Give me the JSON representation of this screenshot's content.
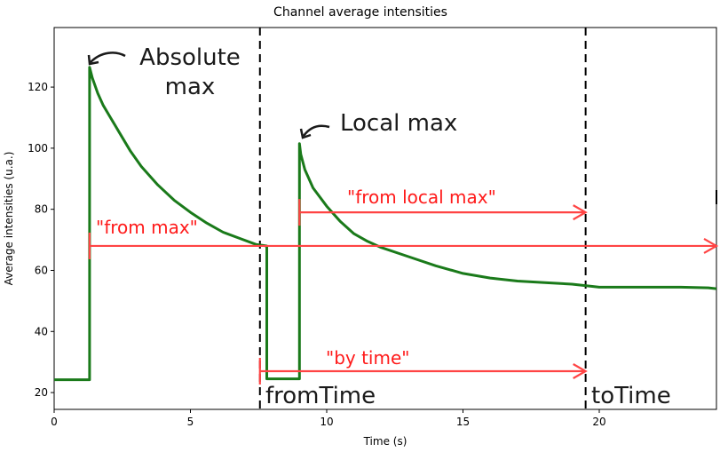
{
  "chart_data": {
    "type": "line",
    "title": "Channel average intensities",
    "xlabel": "Time (s)",
    "ylabel": "Average intensities (u.a.)",
    "xlim": [
      0,
      24.3
    ],
    "ylim": [
      14.5,
      139.5
    ],
    "xticks": [
      0,
      5,
      10,
      15,
      20
    ],
    "yticks": [
      20,
      40,
      60,
      80,
      100,
      120
    ],
    "grid": false,
    "series": [
      {
        "name": "",
        "color": "#1a7a1a",
        "x": [
          0,
          1.3,
          1.3,
          1.4,
          1.6,
          1.8,
          2.0,
          2.4,
          2.8,
          3.2,
          3.8,
          4.4,
          5.0,
          5.6,
          6.2,
          6.8,
          7.4,
          7.8,
          7.8,
          9.0,
          9.0,
          9.05,
          9.2,
          9.5,
          10.0,
          10.5,
          11.0,
          11.5,
          12.0,
          13.0,
          14.0,
          15.0,
          16.0,
          17.0,
          18.0,
          19.0,
          20.0,
          21.0,
          22.0,
          23.0,
          24.0,
          24.3
        ],
        "y": [
          24.2,
          24.2,
          126.5,
          123.0,
          118.0,
          114.0,
          111.0,
          105.0,
          99.0,
          94.0,
          88.0,
          83.0,
          79.0,
          75.5,
          72.5,
          70.5,
          68.5,
          68.0,
          24.5,
          24.5,
          101.5,
          98.0,
          93.0,
          87.0,
          81.0,
          76.0,
          72.0,
          69.5,
          67.5,
          64.5,
          61.5,
          59.0,
          57.5,
          56.5,
          56.0,
          55.5,
          54.5,
          54.5,
          54.5,
          54.5,
          54.3,
          54.0
        ]
      }
    ],
    "vlines": [
      {
        "x": 7.55,
        "style": "dashed",
        "color": "#000000"
      },
      {
        "x": 19.5,
        "style": "dashed",
        "color": "#000000"
      }
    ],
    "annotations": {
      "absolute_max": {
        "text": "Absolute\nmax",
        "point": [
          1.3,
          126.5
        ],
        "lines": [
          "Absolute",
          "max"
        ]
      },
      "local_max": {
        "text": "Local max",
        "point": [
          9.0,
          101.5
        ]
      },
      "from_max": {
        "text": "\"from max\"",
        "y": 68.0,
        "x_start": 1.3,
        "x_end": 24.3,
        "color": "#ff4444"
      },
      "from_local_max": {
        "text": "\"from local max\"",
        "y": 79.0,
        "x_start": 9.0,
        "x_end": 19.5,
        "color": "#ff4444"
      },
      "by_time": {
        "text": "\"by time\"",
        "y": 27.0,
        "x_start": 7.55,
        "x_end": 19.5,
        "color": "#ff4444"
      },
      "from_time": {
        "text": "fromTime"
      },
      "to_time": {
        "text": "toTime"
      }
    }
  }
}
